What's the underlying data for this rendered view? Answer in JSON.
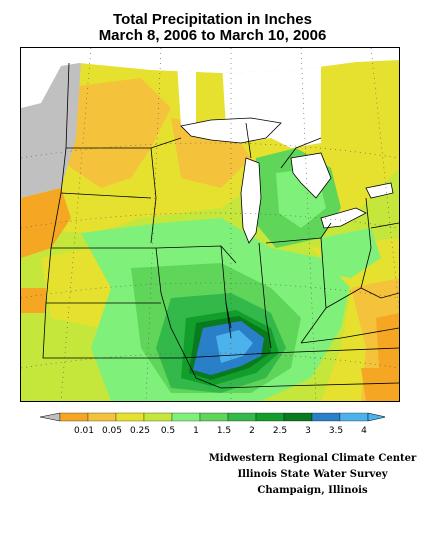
{
  "title": {
    "line1": "Total Precipitation in Inches",
    "line2": "March 8, 2006 to March 10, 2006"
  },
  "legend": {
    "bins": [
      {
        "label": "0.01",
        "color": "#f5a623"
      },
      {
        "label": "0.05",
        "color": "#f5c33b"
      },
      {
        "label": "0.25",
        "color": "#e6e12e"
      },
      {
        "label": "0.5",
        "color": "#c5e63a"
      },
      {
        "label": "1",
        "color": "#7ff07a"
      },
      {
        "label": "1.5",
        "color": "#5fd65a"
      },
      {
        "label": "2",
        "color": "#33b84a"
      },
      {
        "label": "2.5",
        "color": "#129e2b"
      },
      {
        "label": "3",
        "color": "#0a7a1e"
      },
      {
        "label": "3.5",
        "color": "#2a80c8"
      },
      {
        "label": "4",
        "color": "#4cb2ec"
      }
    ],
    "low_color": "#c0c0c0",
    "high_color": "#4cb2ec"
  },
  "credits": {
    "line1": "Midwestern Regional Climate Center",
    "line2": "Illinois State Water Survey",
    "line3": "Champaign, Illinois"
  }
}
